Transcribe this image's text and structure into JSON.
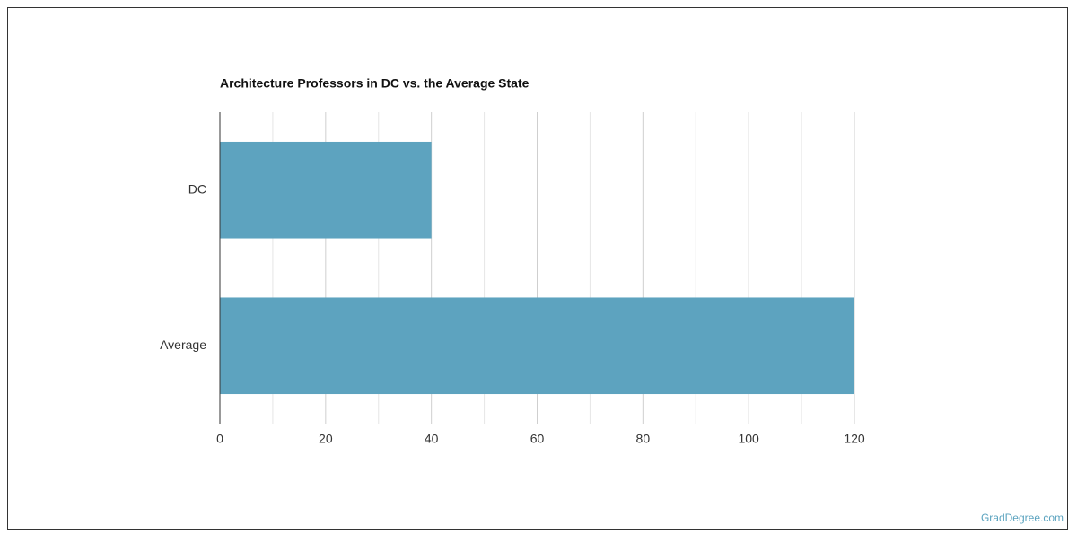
{
  "chart_data": {
    "type": "hbar",
    "title": "Architecture Professors in DC vs. the Average State",
    "categories": [
      "DC",
      "Average"
    ],
    "values": [
      40,
      120
    ],
    "color": "#5da3bf",
    "xlim": [
      0,
      120
    ],
    "xticks": [
      0,
      20,
      40,
      60,
      80,
      100,
      120
    ],
    "minor_xticks": [
      10,
      30,
      50,
      70,
      90,
      110
    ],
    "grid": true
  },
  "footer": {
    "source": "GradDegree.com"
  }
}
